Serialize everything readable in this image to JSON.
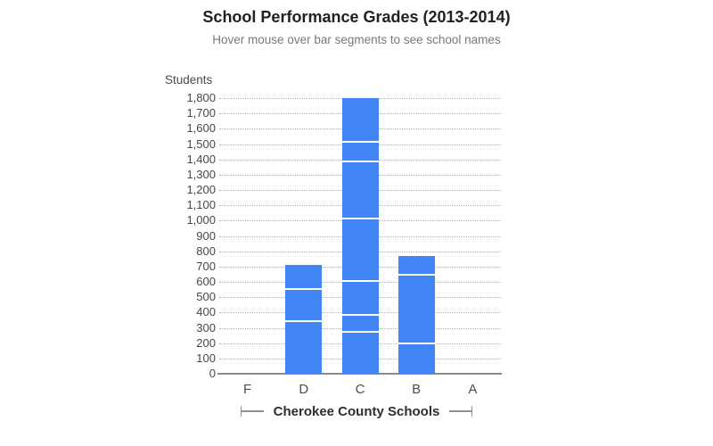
{
  "chart_data": {
    "type": "bar",
    "stacked": true,
    "title": "School Performance Grades (2013-2014)",
    "subtitle": "Hover mouse over bar segments to see school names",
    "ylabel": "Students",
    "xlabel": "Cherokee County Schools",
    "categories": [
      "F",
      "D",
      "C",
      "B",
      "A"
    ],
    "segments": {
      "F": [],
      "D": [
        340,
        205,
        165
      ],
      "C": [
        270,
        110,
        220,
        410,
        370,
        130,
        290
      ],
      "B": [
        190,
        450,
        130
      ],
      "A": []
    },
    "totals": {
      "F": 0,
      "D": 710,
      "C": 1800,
      "B": 770,
      "A": 0
    },
    "ylim": [
      0,
      1800
    ],
    "ytick_interval": 100,
    "ytick_labels": [
      "0",
      "100",
      "200",
      "300",
      "400",
      "500",
      "600",
      "700",
      "800",
      "900",
      "1,000",
      "1,100",
      "1,200",
      "1,300",
      "1,400",
      "1,500",
      "1,600",
      "1,700",
      "1,800"
    ],
    "grid": "horizontal dotted",
    "legend": "none",
    "colors": {
      "bar": "#4285F4",
      "separator": "#FFFFFF",
      "axis_line": "#8A8A8A",
      "gridline": "#B3B3B3",
      "title": "#212121",
      "subtitle": "#787878",
      "tick_text": "#474747"
    }
  }
}
